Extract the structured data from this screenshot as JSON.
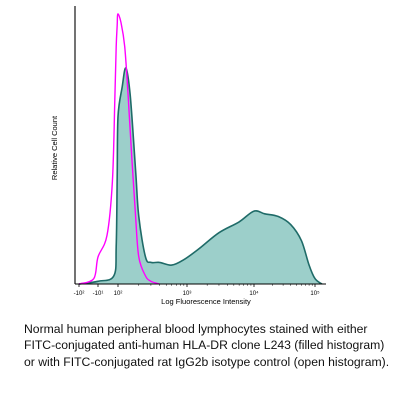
{
  "chart_data": {
    "type": "area",
    "xlabel": "Log Fluorescence Intensity",
    "ylabel": "Relative Cell Count",
    "x_scale": "log",
    "x_ticks": [
      {
        "label": "-10²"
      },
      {
        "label": "-10¹"
      },
      {
        "label": "10²"
      },
      {
        "label": "10³"
      },
      {
        "label": "10⁴"
      },
      {
        "label": "10⁵"
      }
    ],
    "grid": false,
    "legend": "none",
    "colors": {
      "filled": "#1f6b68",
      "filled_area": "#9ccfca",
      "open": "#ff00ff"
    },
    "series": [
      {
        "style": "filled",
        "x": [
          -100,
          -10,
          30,
          60,
          80,
          100,
          115,
          130,
          150,
          180,
          200,
          250,
          300,
          400,
          600,
          900,
          1500,
          3000,
          6000,
          10000,
          15000,
          25000,
          40000,
          60000,
          80000,
          100000,
          120000
        ],
        "y": [
          0,
          1,
          3,
          14,
          40,
          62,
          73,
          80,
          70,
          42,
          25,
          10,
          8,
          8,
          7,
          9,
          13,
          19,
          23,
          27,
          26,
          25,
          22,
          16,
          7,
          2,
          0
        ]
      },
      {
        "style": "open",
        "x": [
          -100,
          -30,
          -10,
          0,
          20,
          40,
          60,
          80,
          95,
          110,
          125,
          140,
          160,
          180,
          200,
          250,
          300,
          400
        ],
        "y": [
          0,
          2,
          10,
          18,
          38,
          68,
          88,
          96,
          100,
          97,
          88,
          70,
          45,
          25,
          10,
          3,
          1,
          0
        ]
      }
    ]
  },
  "caption": "Normal human peripheral blood lymphocytes stained with either FITC-conjugated anti-human HLA-DR clone L243 (filled histogram) or with FITC-conjugated rat IgG2b isotype control (open histogram)."
}
